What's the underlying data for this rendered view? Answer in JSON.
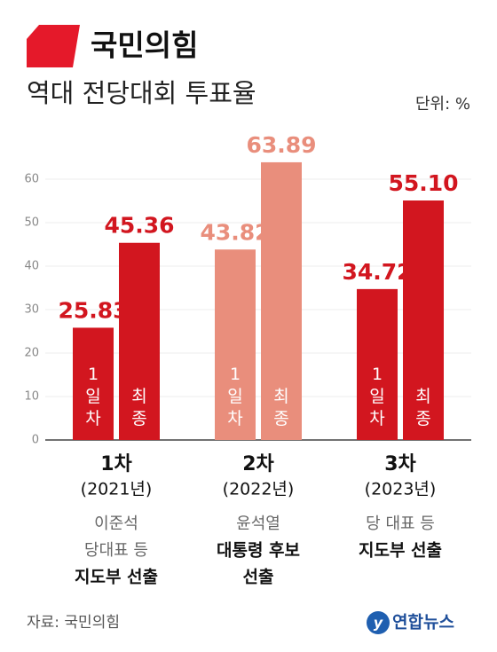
{
  "chart_data": {
    "type": "grouped-bar",
    "title": "국민의힘",
    "subtitle": "역대 전당대회 투표율",
    "unit": "단위: %",
    "categories": [
      "1차",
      "2차",
      "3차"
    ],
    "category_subs": [
      "(2021년)",
      "(2022년)",
      "(2023년)"
    ],
    "notes": [
      [
        "이준석",
        "당대표 등"
      ],
      [
        "윤석열"
      ],
      [
        "당 대표 등"
      ]
    ],
    "notes_bold": [
      [
        "지도부 선출"
      ],
      [
        "대통령 후보",
        "선출"
      ],
      [
        "지도부 선출"
      ]
    ],
    "category_colors": [
      "#d2161f",
      "#e98e7c",
      "#d2161f"
    ],
    "series": [
      {
        "name": "1일차",
        "values": [
          25.83,
          43.82,
          34.72
        ]
      },
      {
        "name": "최종",
        "values": [
          45.36,
          63.89,
          55.1
        ],
        "value_labels": [
          "45.36",
          "63.89",
          "55.10"
        ]
      }
    ],
    "ylim": [
      0,
      65
    ],
    "yticks": [
      0,
      10,
      20,
      30,
      40,
      50,
      60
    ],
    "grid": true,
    "source": "자료: 국민의힘",
    "logo": "연합뉴스"
  }
}
